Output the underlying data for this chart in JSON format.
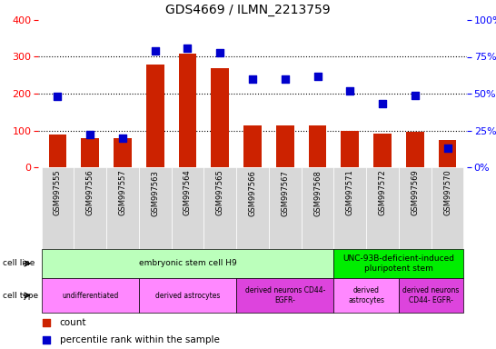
{
  "title": "GDS4669 / ILMN_2213759",
  "samples": [
    "GSM997555",
    "GSM997556",
    "GSM997557",
    "GSM997563",
    "GSM997564",
    "GSM997565",
    "GSM997566",
    "GSM997567",
    "GSM997568",
    "GSM997571",
    "GSM997572",
    "GSM997569",
    "GSM997570"
  ],
  "counts": [
    90,
    80,
    78,
    278,
    308,
    268,
    113,
    113,
    113,
    100,
    92,
    97,
    75
  ],
  "percentiles": [
    48,
    22,
    20,
    79,
    81,
    78,
    60,
    60,
    62,
    52,
    43,
    49,
    13
  ],
  "left_ylim": [
    0,
    400
  ],
  "right_ylim": [
    0,
    100
  ],
  "left_yticks": [
    0,
    100,
    200,
    300,
    400
  ],
  "left_yticklabels": [
    "0",
    "100",
    "200",
    "300",
    "400"
  ],
  "right_yticks": [
    0,
    25,
    50,
    75,
    100
  ],
  "right_yticklabels": [
    "0%",
    "25%",
    "50%",
    "75%",
    "100%"
  ],
  "bar_color": "#cc2200",
  "dot_color": "#0000cc",
  "cell_line_groups": [
    {
      "label": "embryonic stem cell H9",
      "start": 0,
      "end": 9,
      "color": "#bbffbb"
    },
    {
      "label": "UNC-93B-deficient-induced\npluripotent stem",
      "start": 9,
      "end": 13,
      "color": "#00ee00"
    }
  ],
  "cell_type_groups": [
    {
      "label": "undifferentiated",
      "start": 0,
      "end": 3,
      "color": "#ff88ff"
    },
    {
      "label": "derived astrocytes",
      "start": 3,
      "end": 6,
      "color": "#ff88ff"
    },
    {
      "label": "derived neurons CD44-\nEGFR-",
      "start": 6,
      "end": 9,
      "color": "#dd44dd"
    },
    {
      "label": "derived\nastrocytes",
      "start": 9,
      "end": 11,
      "color": "#ff88ff"
    },
    {
      "label": "derived neurons\nCD44- EGFR-",
      "start": 11,
      "end": 13,
      "color": "#dd44dd"
    }
  ],
  "bg_color": "#d8d8d8",
  "dot_size": 28
}
